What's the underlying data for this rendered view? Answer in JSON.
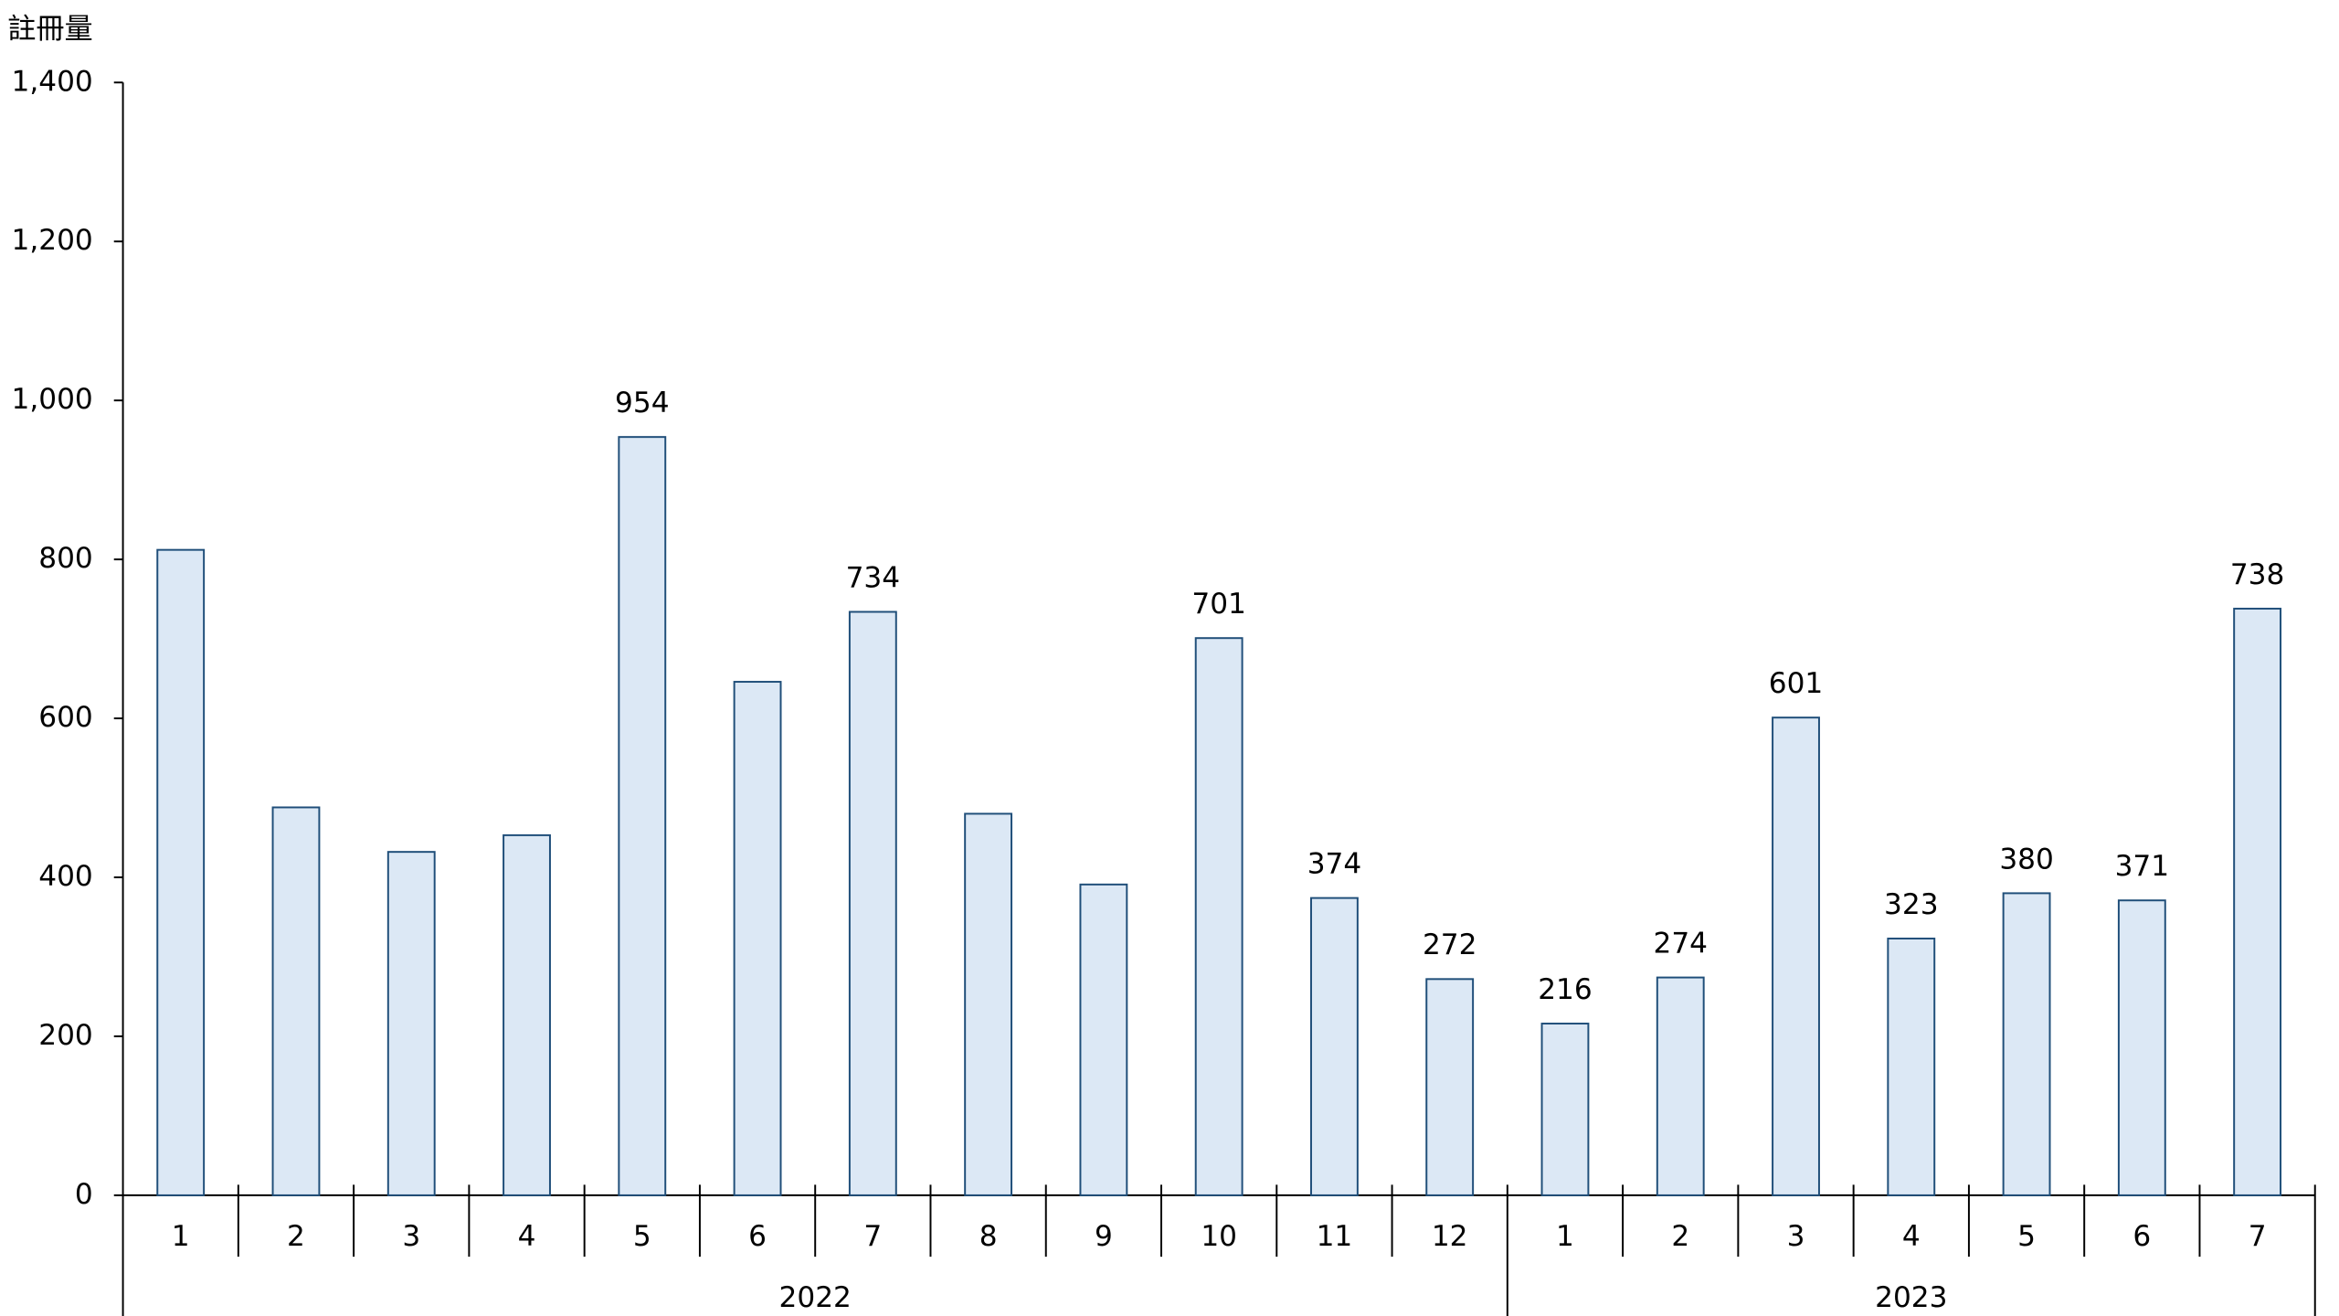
{
  "chart_data": {
    "type": "bar",
    "y_label": "註冊量",
    "groups": [
      {
        "name": "2022",
        "categories": [
          "1",
          "2",
          "3",
          "4",
          "5",
          "6",
          "7",
          "8",
          "9",
          "10",
          "11",
          "12"
        ],
        "values": [
          812,
          488,
          432,
          453,
          954,
          646,
          734,
          480,
          391,
          701,
          374,
          272
        ],
        "value_labels": [
          null,
          null,
          null,
          null,
          "954",
          null,
          "734",
          null,
          null,
          "701",
          "374",
          "272"
        ]
      },
      {
        "name": "2023",
        "categories": [
          "1",
          "2",
          "3",
          "4",
          "5",
          "6",
          "7"
        ],
        "values": [
          216,
          274,
          601,
          323,
          380,
          371,
          738
        ],
        "value_labels": [
          "216",
          "274",
          "601",
          "323",
          "380",
          "371",
          "738"
        ]
      }
    ],
    "color": "#dce8f5",
    "edge_color": "#1f4e79",
    "ylim": [
      0,
      1400
    ],
    "yticks": [
      0,
      200,
      400,
      600,
      800,
      {
        "value": 1000,
        "label": "1,000"
      },
      {
        "value": 1200,
        "label": "1,200"
      },
      {
        "value": 1400,
        "label": "1,400"
      }
    ]
  }
}
